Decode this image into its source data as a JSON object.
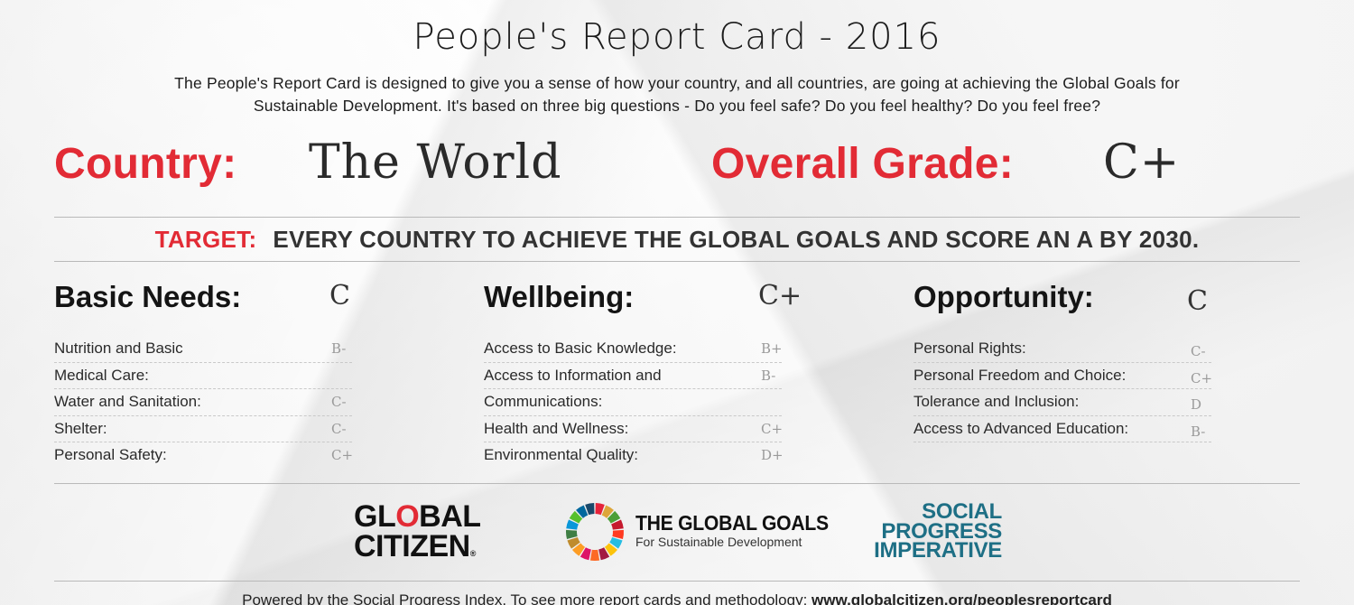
{
  "title": "People's Report Card - 2016",
  "intro_line1": "The People's Report Card is designed to give you a sense of how your country, and all countries, are going at achieving the Global Goals for",
  "intro_line2": "Sustainable Development. It's based on three big questions - Do you feel safe? Do you feel healthy? Do you feel free?",
  "country_label": "Country:",
  "country_value": "The World",
  "overall_label": "Overall Grade:",
  "overall_value": "C+",
  "target_label": "TARGET:",
  "target_text": "EVERY COUNTRY TO ACHIEVE THE GLOBAL GOALS AND SCORE AN A BY 2030.",
  "categories": [
    {
      "title": "Basic Needs:",
      "grade": "C",
      "rows": [
        {
          "label_lines": [
            "Nutrition and Basic",
            "Medical Care:"
          ],
          "grade": "B-"
        },
        {
          "label_lines": [
            "Water and Sanitation:"
          ],
          "grade": "C-"
        },
        {
          "label_lines": [
            "Shelter:"
          ],
          "grade": "C-"
        },
        {
          "label_lines": [
            "Personal Safety:"
          ],
          "grade": "C+"
        }
      ]
    },
    {
      "title": "Wellbeing:",
      "grade": "C+",
      "rows": [
        {
          "label_lines": [
            "Access to Basic Knowledge:"
          ],
          "grade": "B+"
        },
        {
          "label_lines": [
            "Access to Information and",
            "Communications:"
          ],
          "grade": "B-"
        },
        {
          "label_lines": [
            "Health and Wellness:"
          ],
          "grade": "C+"
        },
        {
          "label_lines": [
            "Environmental Quality:"
          ],
          "grade": "D+"
        }
      ]
    },
    {
      "title": "Opportunity:",
      "grade": "C",
      "rows": [
        {
          "label_lines": [
            "Personal Rights:"
          ],
          "grade": "C-"
        },
        {
          "label_lines": [
            "Personal Freedom and Choice:"
          ],
          "grade": "C+"
        },
        {
          "label_lines": [
            "Tolerance and Inclusion:"
          ],
          "grade": "D"
        },
        {
          "label_lines": [
            "Access to Advanced Education:"
          ],
          "grade": "B-"
        }
      ]
    }
  ],
  "logos": {
    "global_citizen_line1_a": "GL",
    "global_citizen_line1_o": "O",
    "global_citizen_line1_b": "BAL",
    "global_citizen_line2": "CITIZEN",
    "global_citizen_mark": "®",
    "global_goals_title": "THE GLOBAL GOALS",
    "global_goals_sub": "For Sustainable Development",
    "global_goals_wheel_colors": [
      "#e5243b",
      "#dda63a",
      "#4c9f38",
      "#c5192d",
      "#ff3a21",
      "#26bde2",
      "#fcc30b",
      "#a21942",
      "#fd6925",
      "#dd1367",
      "#fd9d24",
      "#bf8b2e",
      "#3f7e44",
      "#0a97d9",
      "#56c02b",
      "#00689d",
      "#19486a"
    ],
    "spi_line1": "SOCIAL",
    "spi_line2": "PROGRESS",
    "spi_line3": "IMPERATIVE"
  },
  "footer_text": "Powered by the Social Progress Index. To see more report cards and methodology: ",
  "footer_link": "www.globalcitizen.org/peoplesreportcard",
  "colors": {
    "accent_red": "#e22b35",
    "spi_teal": "#1e6f85"
  }
}
